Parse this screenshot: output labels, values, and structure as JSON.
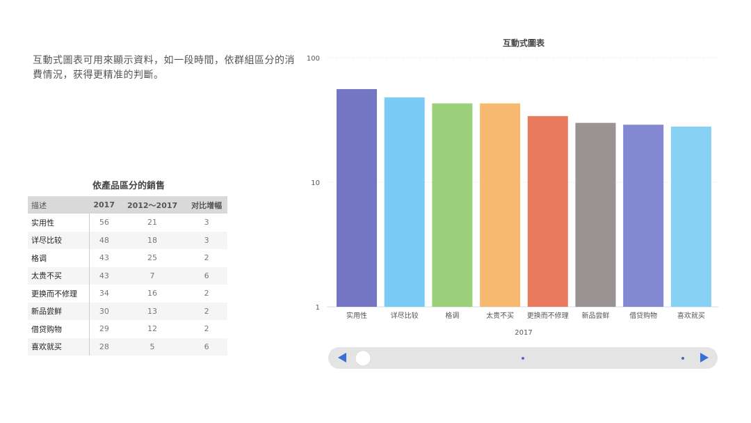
{
  "intro_text": "互動式圖表可用來顯示資料，如一段時間，依群組區分的消費情況，获得更精准的判斷。",
  "table": {
    "title": "依產品區分的銷售",
    "headers": [
      "描述",
      "2017",
      "2012～2017",
      "对比增幅"
    ],
    "rows": [
      [
        "实用性",
        "56",
        "21",
        "3"
      ],
      [
        "详尽比较",
        "48",
        "18",
        "3"
      ],
      [
        "格调",
        "43",
        "25",
        "2"
      ],
      [
        "太贵不买",
        "43",
        "7",
        "6"
      ],
      [
        "更换而不修理",
        "34",
        "16",
        "2"
      ],
      [
        "新品尝鲜",
        "30",
        "13",
        "2"
      ],
      [
        "借贷购物",
        "29",
        "12",
        "2"
      ],
      [
        "喜欢就买",
        "28",
        "5",
        "6"
      ]
    ]
  },
  "chart_data": {
    "type": "bar",
    "title": "互動式圖表",
    "xlabel": "2017",
    "ylabel": "",
    "yscale": "log",
    "ylim": [
      1,
      100
    ],
    "yticks": [
      "1",
      "10",
      "100"
    ],
    "grid": true,
    "categories": [
      "实用性",
      "详尽比较",
      "格调",
      "太贵不买",
      "更换而不修理",
      "新品尝鲜",
      "借贷购物",
      "喜欢就买"
    ],
    "values": [
      56,
      48,
      43,
      43,
      34,
      30,
      29,
      28
    ],
    "colors": [
      "#7476c4",
      "#7ccbf7",
      "#9ccf7a",
      "#f6b96f",
      "#e97a5e",
      "#9a9393",
      "#8488d0",
      "#87d1f5"
    ]
  },
  "slider": {
    "position": 0,
    "accent": "#3a6fd8"
  }
}
